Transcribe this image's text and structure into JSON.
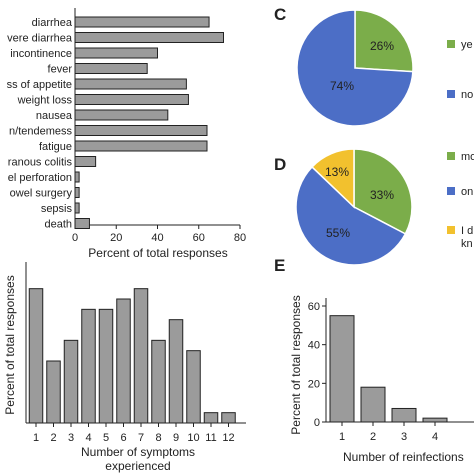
{
  "panel_letters": {
    "c": "C",
    "d": "D",
    "e": "E"
  },
  "colors": {
    "bar_fill": "#9b9b9b",
    "bar_stroke": "#222222",
    "green": "#7bad4a",
    "blue": "#4c6ec6",
    "yellow": "#f2c12e",
    "pie_text_light": "#ffffff",
    "pie_text_dark": "#222222"
  },
  "chart_data": [
    {
      "id": "A",
      "type": "bar",
      "orientation": "horizontal",
      "categories": [
        "diarrhea",
        "vere diarrhea",
        "incontinence",
        "fever",
        "ss of appetite",
        "weight loss",
        "nausea",
        "n/tendemess",
        "fatigue",
        "ranous colitis",
        "el perforation",
        "owel surgery",
        "sepsis",
        "death"
      ],
      "values": [
        65,
        72,
        40,
        35,
        54,
        55,
        45,
        64,
        64,
        10,
        2,
        2,
        2,
        7
      ],
      "xlabel": "Percent of total responses",
      "xlim": [
        0,
        80
      ],
      "xticks": [
        0,
        20,
        40,
        60,
        80
      ]
    },
    {
      "id": "B",
      "type": "bar",
      "categories": [
        "1",
        "2",
        "3",
        "4",
        "5",
        "6",
        "7",
        "8",
        "9",
        "10",
        "11",
        "12"
      ],
      "values": [
        13,
        6,
        8,
        11,
        11,
        12,
        13,
        8,
        10,
        7,
        1,
        1
      ],
      "xlabel": "Number of symptoms experienced",
      "xlabel_lines": [
        "Number of symptoms",
        "experienced"
      ],
      "ylabel": "Percent of total responses",
      "ylim": [
        0,
        15
      ]
    },
    {
      "id": "C",
      "type": "pie",
      "slices": [
        {
          "label": "ye",
          "value": 26,
          "display": "26%",
          "color": "#7bad4a"
        },
        {
          "label": "no",
          "value": 74,
          "display": "74%",
          "color": "#4c6ec6"
        }
      ]
    },
    {
      "id": "D",
      "type": "pie",
      "slices": [
        {
          "label": "mo",
          "value": 33,
          "display": "33%",
          "color": "#7bad4a"
        },
        {
          "label": "on",
          "value": 55,
          "display": "55%",
          "color": "#4c6ec6"
        },
        {
          "label": "I d",
          "label2": "kn",
          "value": 13,
          "display": "13%",
          "color": "#f2c12e"
        }
      ]
    },
    {
      "id": "E",
      "type": "bar",
      "categories": [
        "1",
        "2",
        "3",
        "4"
      ],
      "values": [
        55,
        18,
        7,
        2
      ],
      "xlabel": "Number of reinfections",
      "ylabel": "Percent of total responses",
      "ylim": [
        0,
        60
      ],
      "yticks": [
        0,
        20,
        40,
        60
      ]
    }
  ]
}
